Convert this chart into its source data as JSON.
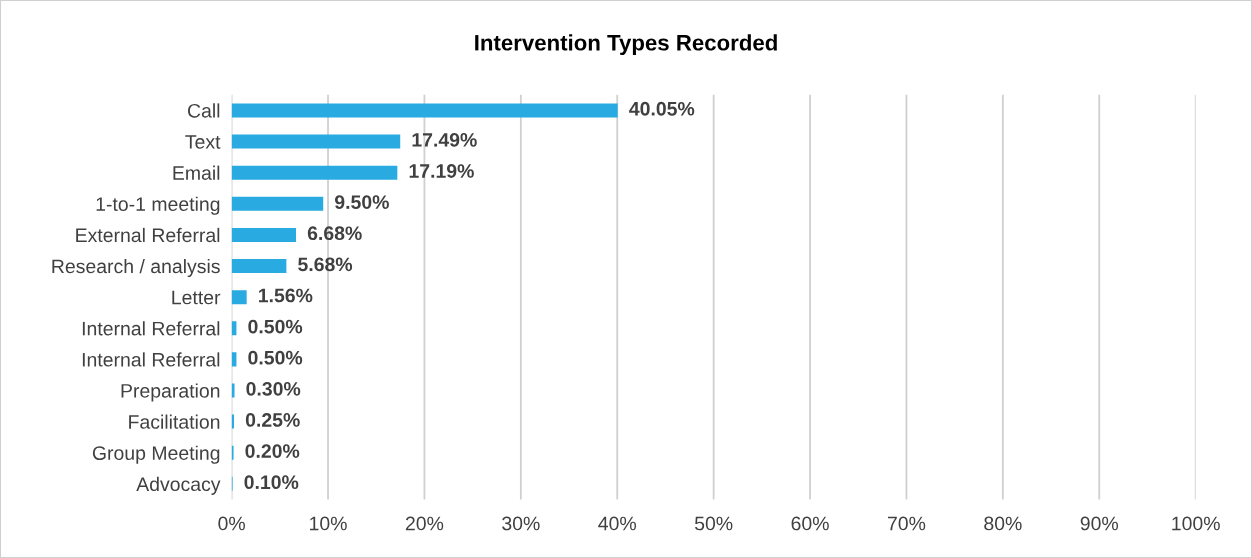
{
  "chart_data": {
    "type": "bar",
    "title": "Intervention Types Recorded",
    "orientation": "horizontal",
    "categories": [
      "Call",
      "Text",
      "Email",
      "1-to-1 meeting",
      "External Referral",
      "Research / analysis",
      "Letter",
      "Internal Referral",
      "Internal Referral",
      "Preparation",
      "Facilitation",
      "Group Meeting",
      "Advocacy"
    ],
    "values": [
      40.05,
      17.49,
      17.19,
      9.5,
      6.68,
      5.68,
      1.56,
      0.5,
      0.5,
      0.3,
      0.25,
      0.2,
      0.1
    ],
    "value_labels": [
      "40.05%",
      "17.49%",
      "17.19%",
      "9.50%",
      "6.68%",
      "5.68%",
      "1.56%",
      "0.50%",
      "0.50%",
      "0.30%",
      "0.25%",
      "0.20%",
      "0.10%"
    ],
    "color": "#29abe2",
    "xlim": [
      0,
      100
    ],
    "xticks": [
      {
        "value": 0,
        "label": "0%"
      },
      {
        "value": 10,
        "label": "10%"
      },
      {
        "value": 20,
        "label": "20%"
      },
      {
        "value": 30,
        "label": "30%"
      },
      {
        "value": 40,
        "label": "40%"
      },
      {
        "value": 50,
        "label": "50%"
      },
      {
        "value": 60,
        "label": "60%"
      },
      {
        "value": 70,
        "label": "70%"
      },
      {
        "value": 80,
        "label": "80%"
      },
      {
        "value": 90,
        "label": "90%"
      },
      {
        "value": 100,
        "label": "100%"
      }
    ],
    "grid": "x"
  }
}
